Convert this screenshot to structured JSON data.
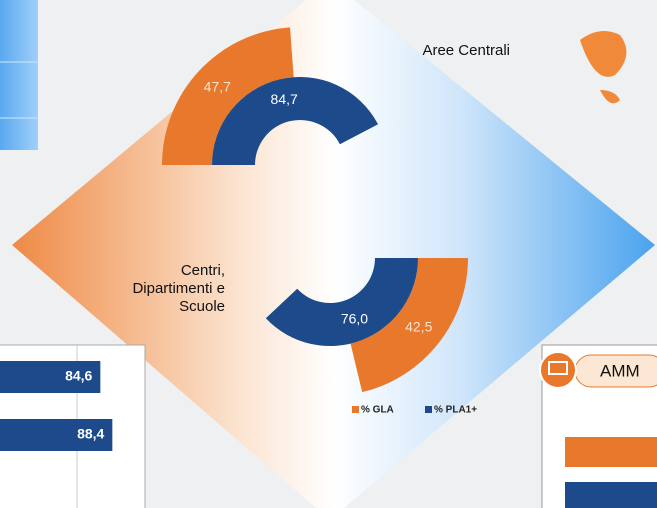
{
  "chart_data": [
    {
      "type": "radial",
      "categories": [
        "Aree Centrali",
        "Centri, Dipartimenti e Scuole"
      ],
      "series": [
        {
          "name": "% GLA",
          "color": "#e8792c",
          "values": [
            47.7,
            42.5
          ],
          "value_labels": [
            "47,7",
            "42,5"
          ]
        },
        {
          "name": "% PLA1+",
          "color": "#1c4a8a",
          "values": [
            84.7,
            76.0
          ],
          "value_labels": [
            "84,7",
            "76,0"
          ]
        }
      ],
      "ylim": [
        0,
        100
      ]
    },
    {
      "type": "bar",
      "orientation": "horizontal",
      "color": "#1c4a8a",
      "values": [
        84.6,
        88.4
      ],
      "value_labels": [
        "84,6",
        "88,4"
      ],
      "xlim": [
        0,
        100
      ]
    }
  ],
  "panel": {
    "title": "AMM"
  }
}
